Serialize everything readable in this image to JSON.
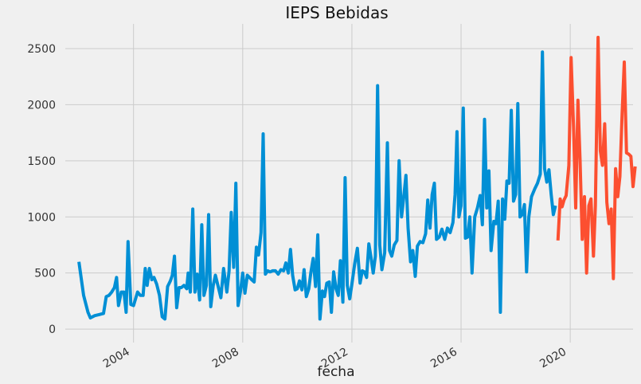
{
  "chart_data": {
    "type": "line",
    "title": "IEPS Bebidas",
    "xlabel": "fecha",
    "ylabel": "",
    "xlim": [
      2001.5,
      2022.3
    ],
    "ylim": [
      -120,
      2720
    ],
    "grid": true,
    "legend": "none",
    "x_ticks": [
      {
        "value": 2004,
        "label": "2004"
      },
      {
        "value": 2008,
        "label": "2008"
      },
      {
        "value": 2012,
        "label": "2012"
      },
      {
        "value": 2016,
        "label": "2016"
      },
      {
        "value": 2020,
        "label": "2020"
      }
    ],
    "y_ticks": [
      {
        "value": 0,
        "label": "0"
      },
      {
        "value": 500,
        "label": "500"
      },
      {
        "value": 1000,
        "label": "1000"
      },
      {
        "value": 1500,
        "label": "1500"
      },
      {
        "value": 2000,
        "label": "2000"
      },
      {
        "value": 2500,
        "label": "2500"
      }
    ],
    "series": [
      {
        "color": "#008fd5",
        "points": [
          [
            2002.0,
            600
          ],
          [
            2002.17,
            300
          ],
          [
            2002.33,
            150
          ],
          [
            2002.42,
            100
          ],
          [
            2002.58,
            120
          ],
          [
            2002.75,
            130
          ],
          [
            2002.9,
            140
          ],
          [
            2003.0,
            290
          ],
          [
            2003.1,
            300
          ],
          [
            2003.2,
            330
          ],
          [
            2003.3,
            370
          ],
          [
            2003.38,
            460
          ],
          [
            2003.45,
            210
          ],
          [
            2003.55,
            330
          ],
          [
            2003.65,
            330
          ],
          [
            2003.73,
            150
          ],
          [
            2003.8,
            780
          ],
          [
            2003.9,
            220
          ],
          [
            2004.0,
            210
          ],
          [
            2004.15,
            330
          ],
          [
            2004.25,
            300
          ],
          [
            2004.35,
            300
          ],
          [
            2004.43,
            540
          ],
          [
            2004.5,
            390
          ],
          [
            2004.58,
            540
          ],
          [
            2004.67,
            440
          ],
          [
            2004.75,
            460
          ],
          [
            2004.85,
            400
          ],
          [
            2004.95,
            300
          ],
          [
            2005.05,
            110
          ],
          [
            2005.15,
            90
          ],
          [
            2005.25,
            380
          ],
          [
            2005.35,
            430
          ],
          [
            2005.42,
            480
          ],
          [
            2005.5,
            650
          ],
          [
            2005.58,
            190
          ],
          [
            2005.67,
            370
          ],
          [
            2005.75,
            370
          ],
          [
            2005.85,
            390
          ],
          [
            2005.95,
            360
          ],
          [
            2006.0,
            500
          ],
          [
            2006.08,
            330
          ],
          [
            2006.17,
            1070
          ],
          [
            2006.25,
            330
          ],
          [
            2006.33,
            490
          ],
          [
            2006.42,
            260
          ],
          [
            2006.5,
            930
          ],
          [
            2006.58,
            300
          ],
          [
            2006.67,
            390
          ],
          [
            2006.75,
            1020
          ],
          [
            2006.83,
            200
          ],
          [
            2006.92,
            390
          ],
          [
            2007.0,
            480
          ],
          [
            2007.1,
            380
          ],
          [
            2007.2,
            280
          ],
          [
            2007.3,
            540
          ],
          [
            2007.42,
            330
          ],
          [
            2007.5,
            520
          ],
          [
            2007.58,
            1040
          ],
          [
            2007.67,
            550
          ],
          [
            2007.75,
            1300
          ],
          [
            2007.83,
            210
          ],
          [
            2007.92,
            340
          ],
          [
            2008.0,
            500
          ],
          [
            2008.08,
            320
          ],
          [
            2008.17,
            480
          ],
          [
            2008.25,
            460
          ],
          [
            2008.33,
            440
          ],
          [
            2008.42,
            420
          ],
          [
            2008.5,
            730
          ],
          [
            2008.58,
            660
          ],
          [
            2008.67,
            860
          ],
          [
            2008.75,
            1740
          ],
          [
            2008.83,
            490
          ],
          [
            2008.92,
            520
          ],
          [
            2009.0,
            510
          ],
          [
            2009.1,
            520
          ],
          [
            2009.2,
            520
          ],
          [
            2009.3,
            490
          ],
          [
            2009.4,
            530
          ],
          [
            2009.5,
            520
          ],
          [
            2009.58,
            590
          ],
          [
            2009.67,
            500
          ],
          [
            2009.75,
            710
          ],
          [
            2009.83,
            480
          ],
          [
            2009.92,
            350
          ],
          [
            2010.0,
            360
          ],
          [
            2010.08,
            430
          ],
          [
            2010.17,
            350
          ],
          [
            2010.25,
            530
          ],
          [
            2010.33,
            290
          ],
          [
            2010.42,
            360
          ],
          [
            2010.5,
            510
          ],
          [
            2010.58,
            630
          ],
          [
            2010.67,
            380
          ],
          [
            2010.75,
            840
          ],
          [
            2010.83,
            90
          ],
          [
            2010.92,
            340
          ],
          [
            2011.0,
            290
          ],
          [
            2011.08,
            410
          ],
          [
            2011.17,
            420
          ],
          [
            2011.25,
            150
          ],
          [
            2011.33,
            510
          ],
          [
            2011.42,
            360
          ],
          [
            2011.5,
            300
          ],
          [
            2011.58,
            610
          ],
          [
            2011.67,
            240
          ],
          [
            2011.75,
            1350
          ],
          [
            2011.83,
            390
          ],
          [
            2011.92,
            270
          ],
          [
            2012.0,
            400
          ],
          [
            2012.1,
            580
          ],
          [
            2012.2,
            720
          ],
          [
            2012.3,
            410
          ],
          [
            2012.38,
            520
          ],
          [
            2012.46,
            510
          ],
          [
            2012.54,
            460
          ],
          [
            2012.62,
            760
          ],
          [
            2012.7,
            640
          ],
          [
            2012.78,
            500
          ],
          [
            2012.86,
            650
          ],
          [
            2012.94,
            2170
          ],
          [
            2013.02,
            750
          ],
          [
            2013.1,
            530
          ],
          [
            2013.2,
            680
          ],
          [
            2013.3,
            1660
          ],
          [
            2013.38,
            700
          ],
          [
            2013.46,
            650
          ],
          [
            2013.55,
            750
          ],
          [
            2013.65,
            790
          ],
          [
            2013.73,
            1500
          ],
          [
            2013.82,
            1000
          ],
          [
            2013.9,
            1180
          ],
          [
            2013.98,
            1370
          ],
          [
            2014.06,
            900
          ],
          [
            2014.15,
            600
          ],
          [
            2014.23,
            700
          ],
          [
            2014.32,
            470
          ],
          [
            2014.4,
            740
          ],
          [
            2014.5,
            780
          ],
          [
            2014.6,
            770
          ],
          [
            2014.7,
            850
          ],
          [
            2014.78,
            1150
          ],
          [
            2014.86,
            900
          ],
          [
            2014.94,
            1200
          ],
          [
            2015.02,
            1300
          ],
          [
            2015.1,
            800
          ],
          [
            2015.2,
            820
          ],
          [
            2015.3,
            890
          ],
          [
            2015.4,
            800
          ],
          [
            2015.5,
            900
          ],
          [
            2015.6,
            860
          ],
          [
            2015.7,
            950
          ],
          [
            2015.78,
            1200
          ],
          [
            2015.85,
            1760
          ],
          [
            2015.92,
            1000
          ],
          [
            2016.0,
            1100
          ],
          [
            2016.08,
            1970
          ],
          [
            2016.16,
            810
          ],
          [
            2016.24,
            820
          ],
          [
            2016.32,
            1000
          ],
          [
            2016.4,
            500
          ],
          [
            2016.5,
            1000
          ],
          [
            2016.6,
            1080
          ],
          [
            2016.7,
            1190
          ],
          [
            2016.78,
            930
          ],
          [
            2016.86,
            1870
          ],
          [
            2016.94,
            1080
          ],
          [
            2017.02,
            1410
          ],
          [
            2017.1,
            700
          ],
          [
            2017.2,
            960
          ],
          [
            2017.28,
            940
          ],
          [
            2017.36,
            1140
          ],
          [
            2017.44,
            150
          ],
          [
            2017.52,
            1160
          ],
          [
            2017.6,
            980
          ],
          [
            2017.68,
            1320
          ],
          [
            2017.76,
            1300
          ],
          [
            2017.84,
            1950
          ],
          [
            2017.92,
            1140
          ],
          [
            2018.0,
            1200
          ],
          [
            2018.08,
            2010
          ],
          [
            2018.16,
            1000
          ],
          [
            2018.24,
            1020
          ],
          [
            2018.32,
            1110
          ],
          [
            2018.4,
            510
          ],
          [
            2018.48,
            1000
          ],
          [
            2018.58,
            1180
          ],
          [
            2018.7,
            1250
          ],
          [
            2018.8,
            1300
          ],
          [
            2018.9,
            1380
          ],
          [
            2018.98,
            2470
          ],
          [
            2019.06,
            1430
          ],
          [
            2019.14,
            1310
          ],
          [
            2019.22,
            1420
          ],
          [
            2019.3,
            1200
          ],
          [
            2019.38,
            1020
          ],
          [
            2019.46,
            1100
          ]
        ]
      },
      {
        "color": "#fc4f30",
        "points": [
          [
            2019.55,
            790
          ],
          [
            2019.63,
            1160
          ],
          [
            2019.7,
            1090
          ],
          [
            2019.77,
            1150
          ],
          [
            2019.85,
            1190
          ],
          [
            2019.95,
            1460
          ],
          [
            2020.03,
            2420
          ],
          [
            2020.12,
            1800
          ],
          [
            2020.2,
            1080
          ],
          [
            2020.28,
            2040
          ],
          [
            2020.36,
            1500
          ],
          [
            2020.44,
            800
          ],
          [
            2020.52,
            1180
          ],
          [
            2020.6,
            500
          ],
          [
            2020.68,
            1100
          ],
          [
            2020.76,
            1160
          ],
          [
            2020.85,
            650
          ],
          [
            2020.92,
            1100
          ],
          [
            2021.02,
            2600
          ],
          [
            2021.1,
            1590
          ],
          [
            2021.18,
            1460
          ],
          [
            2021.26,
            1830
          ],
          [
            2021.34,
            1130
          ],
          [
            2021.42,
            940
          ],
          [
            2021.5,
            1070
          ],
          [
            2021.58,
            450
          ],
          [
            2021.66,
            1430
          ],
          [
            2021.74,
            1180
          ],
          [
            2021.82,
            1360
          ],
          [
            2021.9,
            1920
          ],
          [
            2021.98,
            2380
          ],
          [
            2022.06,
            1570
          ],
          [
            2022.14,
            1560
          ],
          [
            2022.22,
            1540
          ],
          [
            2022.3,
            1270
          ],
          [
            2022.38,
            1450
          ]
        ]
      }
    ]
  }
}
